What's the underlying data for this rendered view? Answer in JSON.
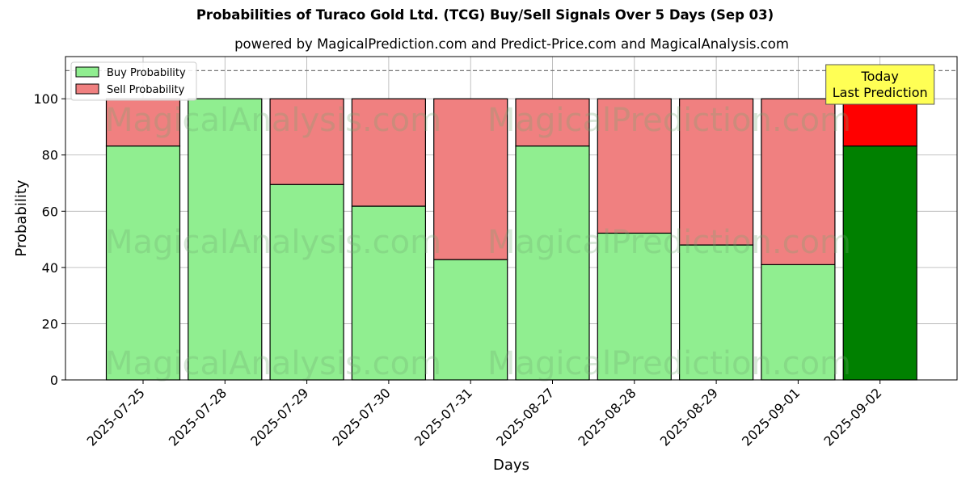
{
  "title": "Probabilities of Turaco Gold Ltd. (TCG) Buy/Sell Signals Over 5 Days (Sep 03)",
  "subtitle": "powered by MagicalPrediction.com and Predict-Price.com and MagicalAnalysis.com",
  "watermarks": [
    "MagicalAnalysis.com",
    "MagicalPrediction.com"
  ],
  "annotation": {
    "line1": "Today",
    "line2": "Last Prediction"
  },
  "colors": {
    "buy": "#90ee90",
    "sell": "#f08080",
    "buy_today": "#008000",
    "sell_today": "#ff0000",
    "annotation_bg": "#ffff55"
  },
  "chart_data": {
    "type": "bar",
    "stacked": true,
    "categories": [
      "2025-07-25",
      "2025-07-28",
      "2025-07-29",
      "2025-07-30",
      "2025-07-31",
      "2025-08-27",
      "2025-08-28",
      "2025-08-29",
      "2025-09-01",
      "2025-09-02"
    ],
    "series": [
      {
        "name": "Buy Probability",
        "values": [
          83.2,
          100,
          69.5,
          61.8,
          42.8,
          83.2,
          52.2,
          48.0,
          41.0,
          83.2
        ]
      },
      {
        "name": "Sell Probability",
        "values": [
          16.8,
          0,
          30.5,
          38.2,
          57.2,
          16.8,
          47.8,
          52.0,
          59.0,
          16.8
        ]
      }
    ],
    "xlabel": "Days",
    "ylabel": "Probability",
    "ylim": [
      0,
      115
    ],
    "yticks": [
      0,
      20,
      40,
      60,
      80,
      100
    ],
    "reference_line": 110,
    "highlight_last": true,
    "grid": true,
    "legend_position": "top-left"
  }
}
